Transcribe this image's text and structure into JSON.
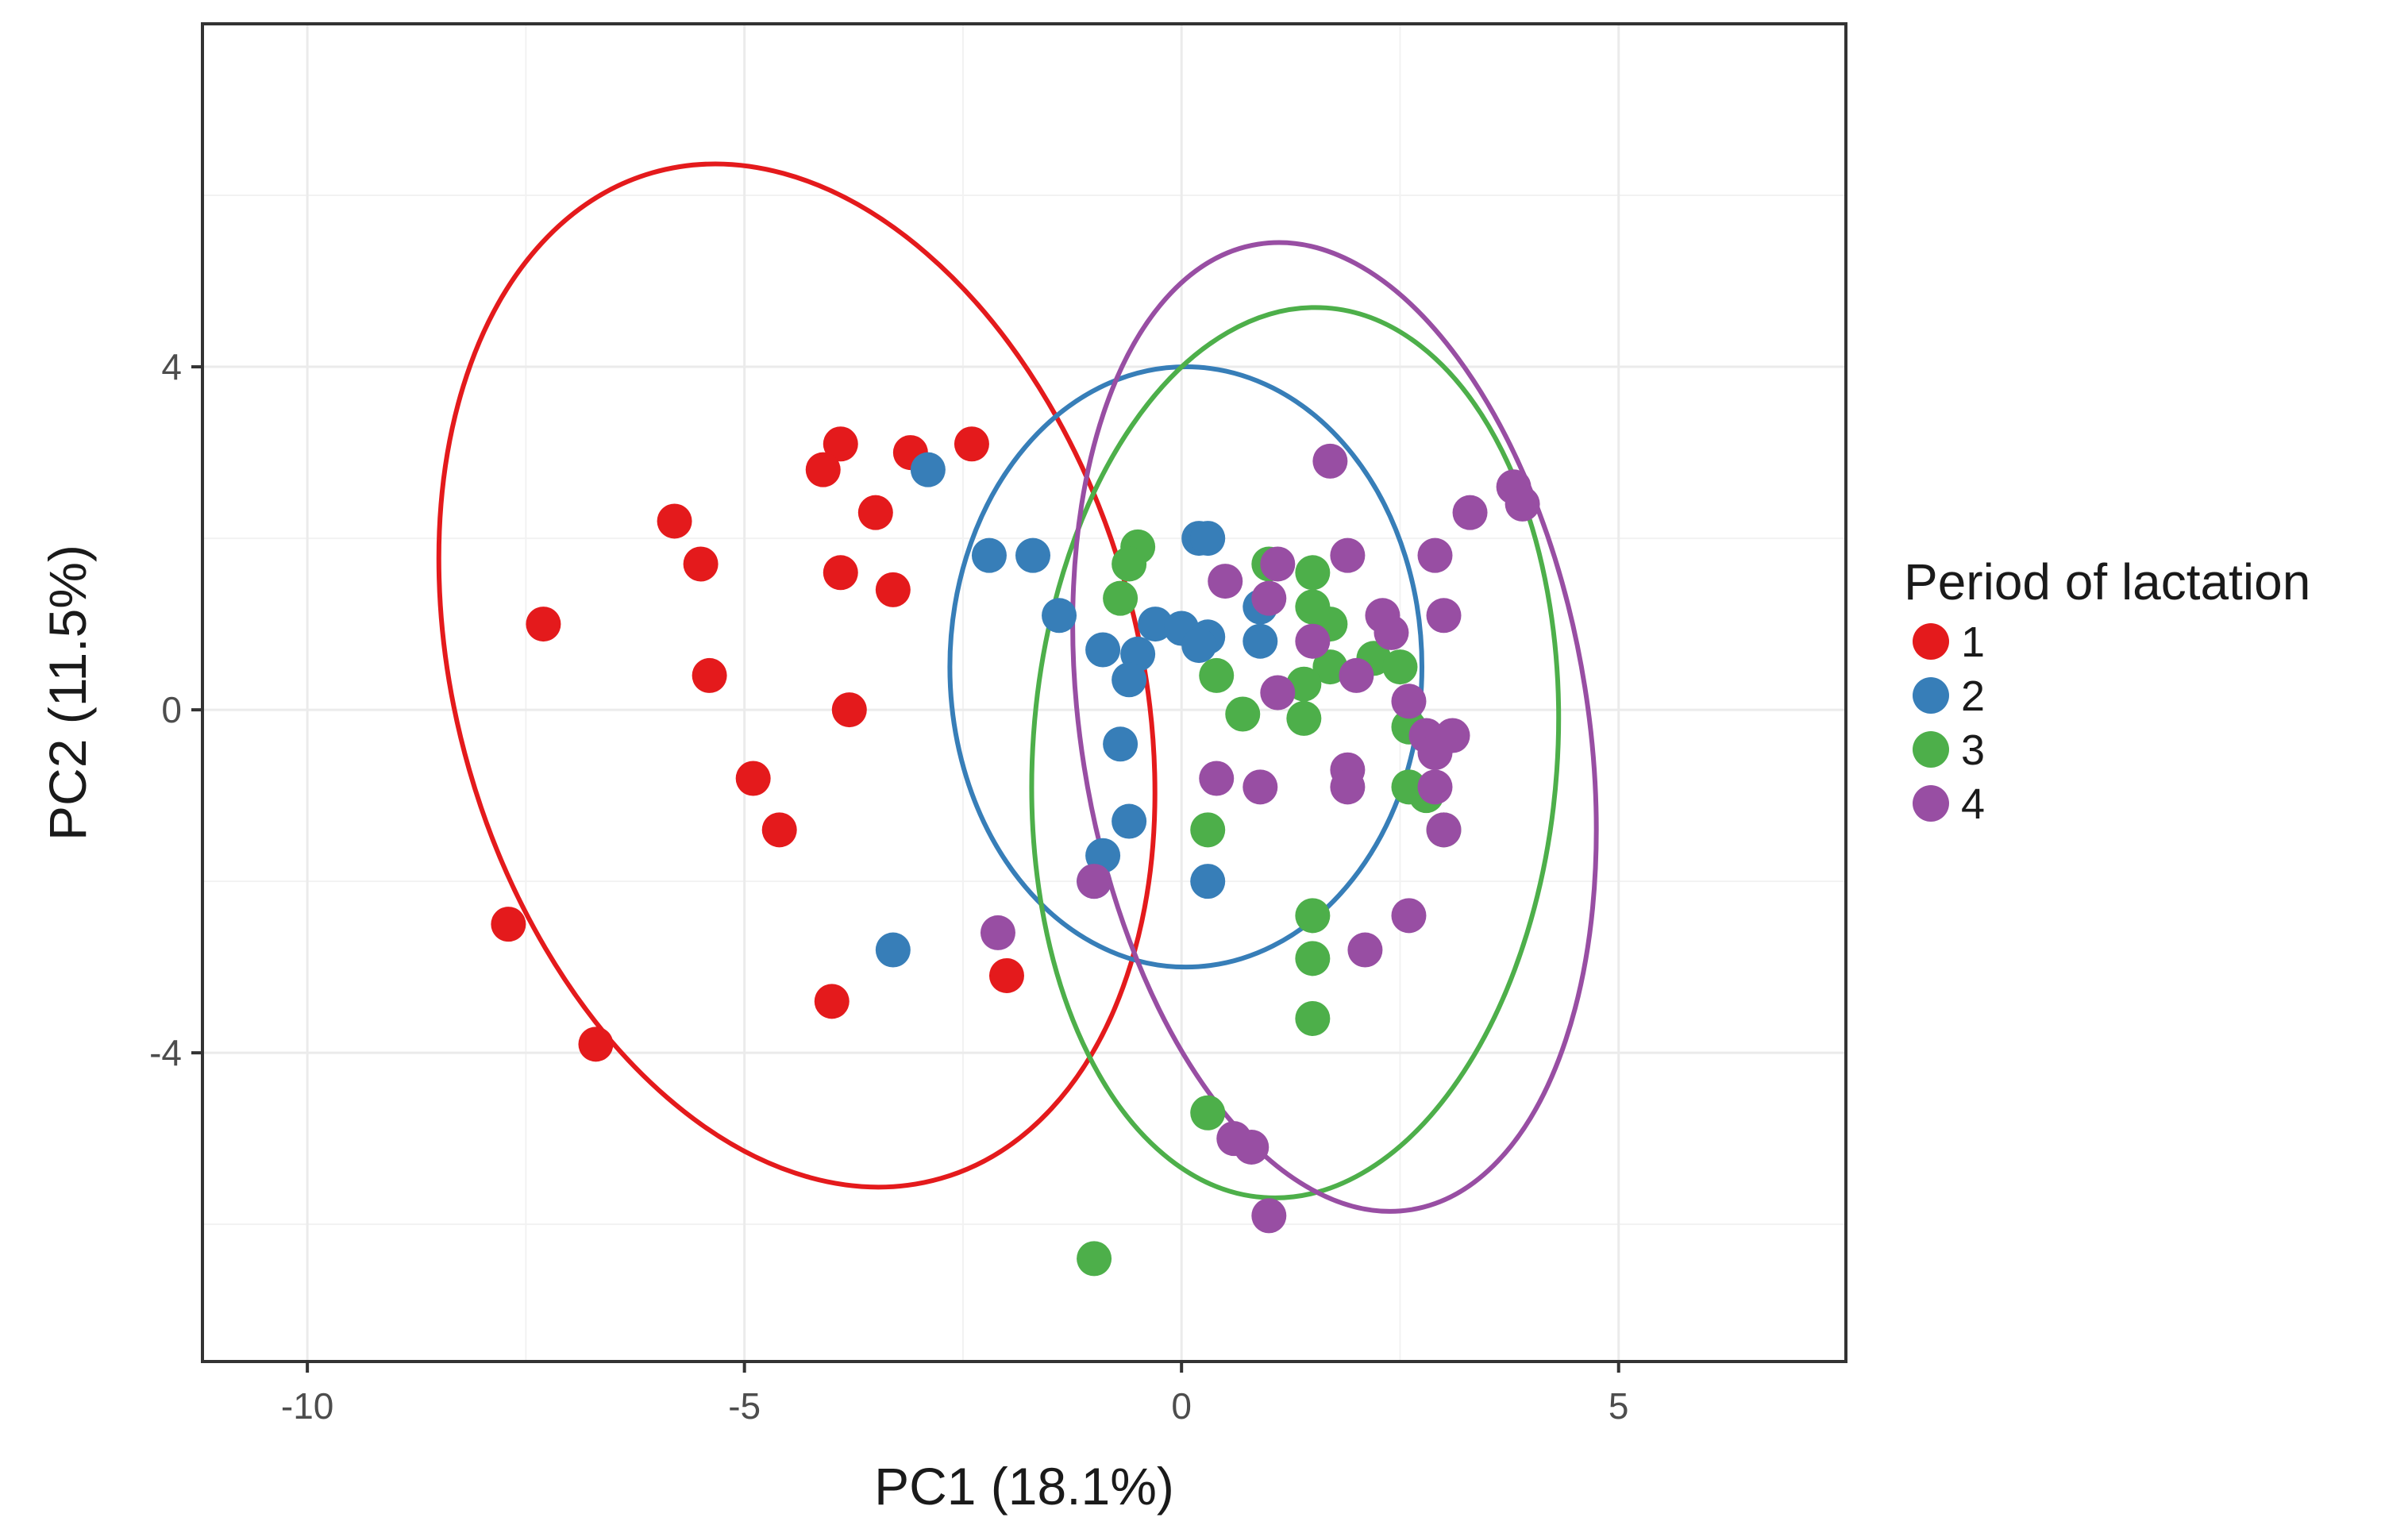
{
  "chart_data": {
    "type": "scatter",
    "xlabel": "PC1 (18.1%)",
    "ylabel": "PC2 (11.5%)",
    "xlim": [
      -11.2,
      7.6
    ],
    "ylim": [
      -7.6,
      8.0
    ],
    "x_ticks": [
      -10,
      -5,
      0,
      5
    ],
    "x_tick_labels": [
      "-10",
      "-5",
      "0",
      "5"
    ],
    "y_ticks": [
      -4,
      0,
      4
    ],
    "y_tick_labels": [
      "-4",
      "0",
      "4"
    ],
    "grid": true,
    "legend": {
      "title": "Period of lactation",
      "position": "right"
    },
    "series": [
      {
        "name": "1",
        "color": "#e41a1c",
        "points": [
          [
            -3.9,
            3.1
          ],
          [
            -3.1,
            3.0
          ],
          [
            -2.4,
            3.1
          ],
          [
            -4.1,
            2.8
          ],
          [
            -3.5,
            2.3
          ],
          [
            -5.8,
            2.2
          ],
          [
            -5.5,
            1.7
          ],
          [
            -3.9,
            1.6
          ],
          [
            -3.3,
            1.4
          ],
          [
            -7.3,
            1.0
          ],
          [
            -5.4,
            0.4
          ],
          [
            -3.8,
            0.0
          ],
          [
            -4.9,
            -0.8
          ],
          [
            -4.6,
            -1.4
          ],
          [
            -7.7,
            -2.5
          ],
          [
            -2.0,
            -3.1
          ],
          [
            -4.0,
            -3.4
          ],
          [
            -6.7,
            -3.9
          ]
        ],
        "ellipse": {
          "center": [
            -4.4,
            0.4
          ],
          "semi_axes": [
            3.9,
            6.1
          ],
          "rotation_deg": -16
        }
      },
      {
        "name": "2",
        "color": "#377eb8",
        "points": [
          [
            -2.9,
            2.8
          ],
          [
            -2.2,
            1.8
          ],
          [
            -1.7,
            1.8
          ],
          [
            -1.4,
            1.1
          ],
          [
            0.2,
            2.0
          ],
          [
            0.3,
            2.0
          ],
          [
            -0.3,
            1.0
          ],
          [
            0.0,
            0.95
          ],
          [
            0.3,
            0.85
          ],
          [
            0.2,
            0.75
          ],
          [
            0.9,
            1.2
          ],
          [
            0.9,
            0.8
          ],
          [
            -0.9,
            0.7
          ],
          [
            -0.5,
            0.65
          ],
          [
            -0.6,
            0.35
          ],
          [
            -0.7,
            -0.4
          ],
          [
            -0.6,
            -1.3
          ],
          [
            -0.9,
            -1.7
          ],
          [
            -1.0,
            -2.0
          ],
          [
            0.3,
            -2.0
          ],
          [
            -3.3,
            -2.8
          ]
        ],
        "ellipse": {
          "center": [
            0.05,
            0.5
          ],
          "semi_axes": [
            2.7,
            3.5
          ],
          "rotation_deg": 0
        }
      },
      {
        "name": "3",
        "color": "#4daf4a",
        "points": [
          [
            -0.5,
            1.9
          ],
          [
            -0.6,
            1.7
          ],
          [
            -0.7,
            1.3
          ],
          [
            1.0,
            1.7
          ],
          [
            1.5,
            1.6
          ],
          [
            1.5,
            1.2
          ],
          [
            1.7,
            1.0
          ],
          [
            2.2,
            0.6
          ],
          [
            2.5,
            0.5
          ],
          [
            1.7,
            0.5
          ],
          [
            0.4,
            0.4
          ],
          [
            1.4,
            0.3
          ],
          [
            0.7,
            -0.05
          ],
          [
            1.4,
            -0.1
          ],
          [
            2.6,
            -0.2
          ],
          [
            2.8,
            -1.0
          ],
          [
            3.0,
            -1.4
          ],
          [
            2.6,
            -0.9
          ],
          [
            0.3,
            -1.4
          ],
          [
            1.5,
            -2.4
          ],
          [
            1.5,
            -2.9
          ],
          [
            1.5,
            -3.6
          ],
          [
            0.3,
            -4.7
          ],
          [
            -1.0,
            -6.4
          ]
        ],
        "ellipse": {
          "center": [
            1.3,
            -0.5
          ],
          "semi_axes": [
            3.0,
            5.2
          ],
          "rotation_deg": 4
        }
      },
      {
        "name": "4",
        "color": "#984ea3",
        "points": [
          [
            1.7,
            2.9
          ],
          [
            3.8,
            2.6
          ],
          [
            3.9,
            2.4
          ],
          [
            3.3,
            2.3
          ],
          [
            1.9,
            1.8
          ],
          [
            2.9,
            1.8
          ],
          [
            0.5,
            1.5
          ],
          [
            1.1,
            1.7
          ],
          [
            1.0,
            1.3
          ],
          [
            2.3,
            1.1
          ],
          [
            3.0,
            1.1
          ],
          [
            1.5,
            0.8
          ],
          [
            2.4,
            0.9
          ],
          [
            2.0,
            0.4
          ],
          [
            1.1,
            0.2
          ],
          [
            2.6,
            0.1
          ],
          [
            2.8,
            -0.3
          ],
          [
            3.1,
            -0.3
          ],
          [
            2.9,
            -0.5
          ],
          [
            0.4,
            -0.8
          ],
          [
            1.9,
            -0.7
          ],
          [
            1.9,
            -0.9
          ],
          [
            0.9,
            -0.9
          ],
          [
            2.9,
            -0.9
          ],
          [
            3.0,
            -1.4
          ],
          [
            -1.0,
            -2.0
          ],
          [
            2.6,
            -2.4
          ],
          [
            2.1,
            -2.8
          ],
          [
            -2.1,
            -2.6
          ],
          [
            0.6,
            -5.0
          ],
          [
            0.8,
            -5.1
          ],
          [
            1.0,
            -5.9
          ]
        ],
        "ellipse": {
          "center": [
            1.75,
            -0.2
          ],
          "semi_axes": [
            2.9,
            5.7
          ],
          "rotation_deg": -9
        }
      }
    ]
  }
}
